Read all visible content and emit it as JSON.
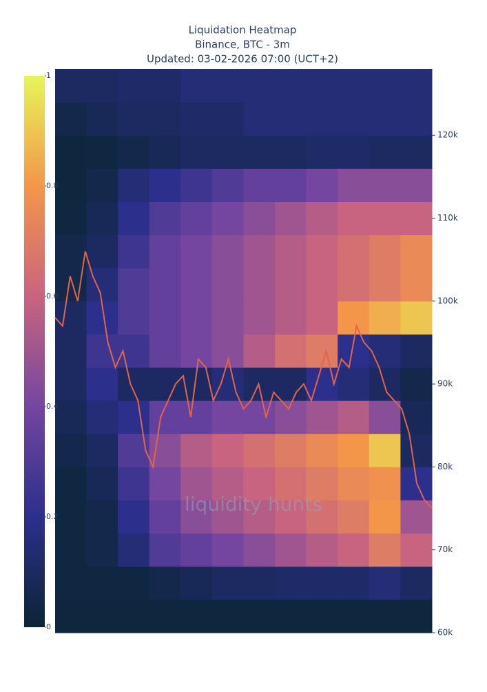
{
  "chart_data": {
    "type": "heatmap",
    "title": "Liquidation Heatmap",
    "subtitle": "Binance, BTC - 3m",
    "updated": "Updated: 03-02-2026 07:00 (UCT+2)",
    "watermark": "liquidity hunts",
    "y_bins": [
      60000,
      64000,
      68000,
      72000,
      76000,
      80000,
      84000,
      88000,
      92000,
      96000,
      100000,
      104000,
      108000,
      112000,
      116000,
      120000,
      124000,
      128000
    ],
    "z": [
      [
        0.02,
        0.02,
        0.02,
        0.02,
        0.02,
        0.02,
        0.02,
        0.02,
        0.02,
        0.02,
        0.02,
        0.02
      ],
      [
        0.03,
        0.03,
        0.03,
        0.05,
        0.08,
        0.1,
        0.1,
        0.12,
        0.12,
        0.12,
        0.15,
        0.1
      ],
      [
        0.03,
        0.05,
        0.15,
        0.3,
        0.35,
        0.4,
        0.45,
        0.5,
        0.55,
        0.6,
        0.7,
        0.6
      ],
      [
        0.03,
        0.05,
        0.2,
        0.35,
        0.45,
        0.5,
        0.55,
        0.6,
        0.65,
        0.7,
        0.8,
        0.5
      ],
      [
        0.03,
        0.08,
        0.25,
        0.4,
        0.5,
        0.55,
        0.6,
        0.65,
        0.7,
        0.75,
        0.78,
        0.2
      ],
      [
        0.05,
        0.1,
        0.3,
        0.45,
        0.55,
        0.6,
        0.65,
        0.7,
        0.75,
        0.8,
        0.9,
        0.1
      ],
      [
        0.08,
        0.15,
        0.2,
        0.35,
        0.35,
        0.4,
        0.4,
        0.45,
        0.5,
        0.55,
        0.45,
        0.08
      ],
      [
        0.1,
        0.2,
        0.1,
        0.1,
        0.1,
        0.15,
        0.1,
        0.1,
        0.2,
        0.15,
        0.1,
        0.05
      ],
      [
        0.1,
        0.25,
        0.25,
        0.35,
        0.4,
        0.45,
        0.55,
        0.65,
        0.7,
        0.2,
        0.15,
        0.1
      ],
      [
        0.1,
        0.2,
        0.3,
        0.35,
        0.4,
        0.45,
        0.5,
        0.55,
        0.6,
        0.8,
        0.85,
        0.9
      ],
      [
        0.05,
        0.15,
        0.3,
        0.35,
        0.4,
        0.45,
        0.5,
        0.55,
        0.6,
        0.65,
        0.7,
        0.75
      ],
      [
        0.05,
        0.1,
        0.25,
        0.35,
        0.4,
        0.45,
        0.5,
        0.55,
        0.6,
        0.65,
        0.7,
        0.75
      ],
      [
        0.03,
        0.08,
        0.2,
        0.3,
        0.35,
        0.4,
        0.45,
        0.5,
        0.55,
        0.6,
        0.6,
        0.6
      ],
      [
        0.02,
        0.05,
        0.15,
        0.2,
        0.25,
        0.3,
        0.35,
        0.35,
        0.4,
        0.45,
        0.45,
        0.45
      ],
      [
        0.02,
        0.03,
        0.05,
        0.08,
        0.1,
        0.1,
        0.1,
        0.1,
        0.12,
        0.12,
        0.1,
        0.1
      ],
      [
        0.05,
        0.08,
        0.1,
        0.1,
        0.12,
        0.12,
        0.15,
        0.15,
        0.15,
        0.15,
        0.15,
        0.15
      ],
      [
        0.1,
        0.1,
        0.12,
        0.12,
        0.15,
        0.15,
        0.15,
        0.15,
        0.15,
        0.15,
        0.15,
        0.15
      ]
    ],
    "zlim": [
      0,
      1
    ],
    "zticks": [
      0,
      0.2,
      0.4,
      0.6,
      0.8,
      1
    ],
    "colorscale": [
      [
        0,
        "#0b2535"
      ],
      [
        0.2,
        "#2c2f8c"
      ],
      [
        0.4,
        "#7446a0"
      ],
      [
        0.6,
        "#c8647f"
      ],
      [
        0.8,
        "#f4964a"
      ],
      [
        1,
        "#e6f65a"
      ]
    ],
    "ylim": [
      60000,
      128000
    ],
    "yticks": [
      {
        "value": 60000,
        "label": "60k"
      },
      {
        "value": 70000,
        "label": "70k"
      },
      {
        "value": 80000,
        "label": "80k"
      },
      {
        "value": 90000,
        "label": "90k"
      },
      {
        "value": 100000,
        "label": "100k"
      },
      {
        "value": 110000,
        "label": "110k"
      },
      {
        "value": 120000,
        "label": "120k"
      }
    ],
    "price": {
      "color": "#e0654a",
      "values": [
        98000,
        97000,
        103000,
        100000,
        106000,
        103000,
        101000,
        95000,
        92000,
        94000,
        90000,
        88000,
        82000,
        80000,
        86000,
        88000,
        90000,
        91000,
        86000,
        93000,
        92000,
        88000,
        90000,
        93000,
        89000,
        87000,
        88000,
        90000,
        86000,
        89000,
        88000,
        87000,
        89000,
        90000,
        88000,
        91000,
        94000,
        90000,
        93000,
        92000,
        97000,
        95000,
        94000,
        92000,
        89000,
        88000,
        87000,
        84000,
        78000,
        76000,
        75000
      ]
    }
  }
}
